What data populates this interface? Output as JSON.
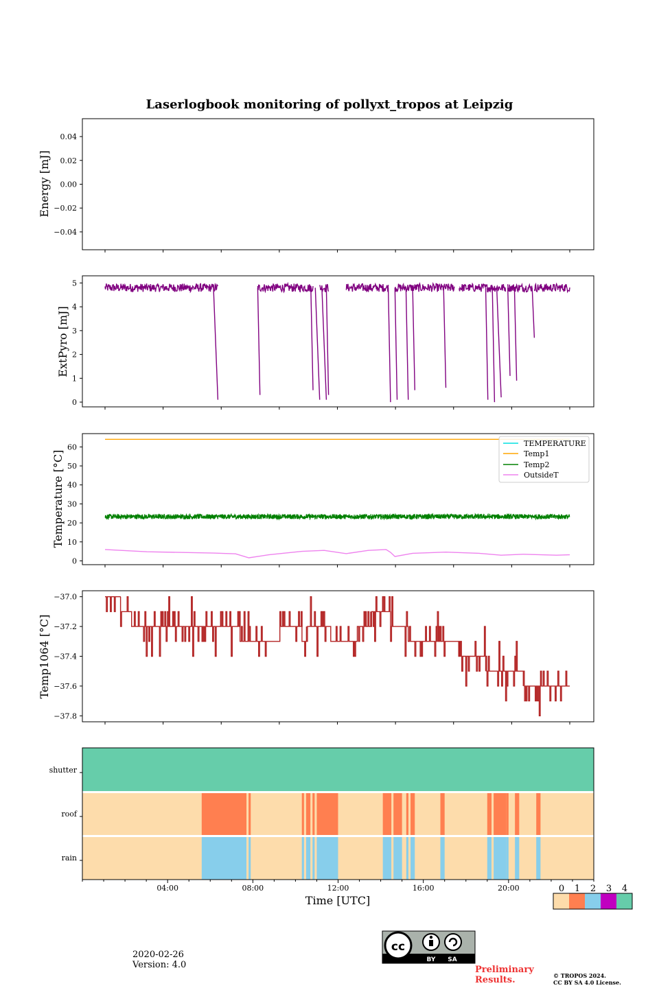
{
  "colors": {
    "pyro": "#800080",
    "temperature": "#00e0e0",
    "temp1": "#ffa500",
    "temp2": "#008000",
    "outsideT": "#ee82ee",
    "temp1064": "#b22222",
    "status0": "#fddcab",
    "status1": "#ff7f50",
    "status2": "#87ceeb",
    "status3": "#c000c0",
    "status4": "#66cdaa"
  },
  "chart_data": [
    {
      "type": "line",
      "title": "Laserlogbook monitoring of pollyxt_tropos at Leipzig",
      "ylabel": "Energy [mJ]",
      "ylim": [
        -0.055,
        0.055
      ],
      "yticks": [
        -0.04,
        -0.02,
        0.0,
        0.02,
        0.04
      ],
      "ytick_labels": [
        "−0.04",
        "−0.02",
        "0.00",
        "0.02",
        "0.04"
      ],
      "series": []
    },
    {
      "type": "line",
      "ylabel": "ExtPyro [mJ]",
      "ylim": [
        -0.2,
        5.3
      ],
      "yticks": [
        0,
        1,
        2,
        3,
        4,
        5
      ],
      "ytick_labels": [
        "0",
        "1",
        "2",
        "3",
        "4",
        "5"
      ],
      "baseline": 4.8,
      "segments": [
        [
          1.1,
          6.2
        ],
        [
          8.0,
          10.5
        ],
        [
          10.8,
          11.2
        ],
        [
          12.0,
          13.9
        ],
        [
          14.2,
          16.9
        ],
        [
          17.1,
          19.2
        ],
        [
          19.3,
          20.4
        ],
        [
          20.5,
          22.1
        ]
      ],
      "drops": [
        [
          6.0,
          6.2,
          0.1
        ],
        [
          8.0,
          8.1,
          0.3
        ],
        [
          10.4,
          10.5,
          0.5
        ],
        [
          10.6,
          10.8,
          0.1
        ],
        [
          10.9,
          11.1,
          0.1
        ],
        [
          11.1,
          11.2,
          0.3
        ],
        [
          13.9,
          14.0,
          0.0
        ],
        [
          14.2,
          14.3,
          0.1
        ],
        [
          14.7,
          14.8,
          0.1
        ],
        [
          15.0,
          15.1,
          0.5
        ],
        [
          16.4,
          16.5,
          0.6
        ],
        [
          18.3,
          18.4,
          0.1
        ],
        [
          18.6,
          18.7,
          0.0
        ],
        [
          18.8,
          19.0,
          0.2
        ],
        [
          19.3,
          19.4,
          1.1
        ],
        [
          19.6,
          19.7,
          0.9
        ],
        [
          20.4,
          20.5,
          2.7
        ]
      ]
    },
    {
      "type": "line",
      "ylabel": "Temperature [°C]",
      "ylim": [
        -2,
        67
      ],
      "yticks": [
        0,
        10,
        20,
        30,
        40,
        50,
        60
      ],
      "ytick_labels": [
        "0",
        "10",
        "20",
        "30",
        "40",
        "50",
        "60"
      ],
      "series": [
        {
          "name": "TEMPERATURE",
          "values": []
        },
        {
          "name": "Temp1",
          "value": 64
        },
        {
          "name": "Temp2",
          "mean": 23.3,
          "noise": 1.3
        },
        {
          "name": "OutsideT",
          "x": [
            1.1,
            3.0,
            6.0,
            7.0,
            7.6,
            8.5,
            10.0,
            11.0,
            12.0,
            13.0,
            13.8,
            14.0,
            14.2,
            15.0,
            16.5,
            18.0,
            19.0,
            20.0,
            21.5,
            22.1
          ],
          "y": [
            6,
            4.8,
            4.1,
            3.7,
            1.6,
            3.2,
            5.0,
            5.5,
            3.8,
            5.5,
            6.0,
            4.5,
            2.3,
            4.0,
            4.6,
            4.0,
            3.0,
            3.5,
            3.0,
            3.2
          ]
        }
      ],
      "legend": [
        "TEMPERATURE",
        "Temp1",
        "Temp2",
        "OutsideT"
      ],
      "legend_location": "top-right"
    },
    {
      "type": "line",
      "ylabel": "Temp1064 [°C]",
      "ylim": [
        -37.84,
        -36.96
      ],
      "yticks": [
        -37.8,
        -37.6,
        -37.4,
        -37.2,
        -37.0
      ],
      "ytick_labels": [
        "−37.8",
        "−37.6",
        "−37.4",
        "−37.2",
        "−37.0"
      ],
      "levels": [
        [
          1.1,
          -37.0
        ],
        [
          1.8,
          -37.1
        ],
        [
          2.3,
          -37.2
        ],
        [
          7.2,
          -37.3
        ],
        [
          9.0,
          -37.2
        ],
        [
          10.0,
          -37.3
        ],
        [
          10.2,
          -37.2
        ],
        [
          11.3,
          -37.3
        ],
        [
          12.5,
          -37.2
        ],
        [
          13.1,
          -37.1
        ],
        [
          14.0,
          -37.2
        ],
        [
          14.8,
          -37.3
        ],
        [
          17.1,
          -37.4
        ],
        [
          18.3,
          -37.5
        ],
        [
          20.0,
          -37.6
        ],
        [
          22.1,
          -37.6
        ]
      ]
    },
    {
      "type": "heatmap",
      "rows": [
        "shutter",
        "roof",
        "rain"
      ],
      "xlabel": "Time [UTC]",
      "xlim": [
        0,
        24
      ],
      "xticks": [
        4,
        8,
        12,
        16,
        20
      ],
      "xtick_labels": [
        "04:00",
        "08:00",
        "12:00",
        "16:00",
        "20:00"
      ],
      "shutter_value": 4,
      "roof_closed_value": 1,
      "rain_value": 2,
      "background_value": 0,
      "intervals": [
        [
          5.6,
          7.7
        ],
        [
          7.8,
          7.9
        ],
        [
          10.3,
          10.4
        ],
        [
          10.5,
          10.7
        ],
        [
          10.8,
          10.9
        ],
        [
          11.0,
          12.0
        ],
        [
          14.1,
          14.5
        ],
        [
          14.6,
          15.0
        ],
        [
          15.2,
          15.3
        ],
        [
          15.4,
          15.6
        ],
        [
          16.8,
          17.0
        ],
        [
          19.0,
          19.2
        ],
        [
          19.3,
          19.9
        ],
        [
          19.9,
          20.0
        ],
        [
          20.3,
          20.5
        ],
        [
          21.3,
          21.5
        ]
      ],
      "colorbar_ticks": [
        "0",
        "1",
        "2",
        "3",
        "4"
      ]
    }
  ],
  "footer": {
    "date": "2020-02-26",
    "version": "Version: 4.0",
    "preliminary_line1": "Preliminary",
    "preliminary_line2": "Results.",
    "copyright_line1": "© TROPOS 2024.",
    "copyright_line2": "CC BY SA 4.0 License.",
    "license_badge_by": "BY",
    "license_badge_sa": "SA"
  }
}
